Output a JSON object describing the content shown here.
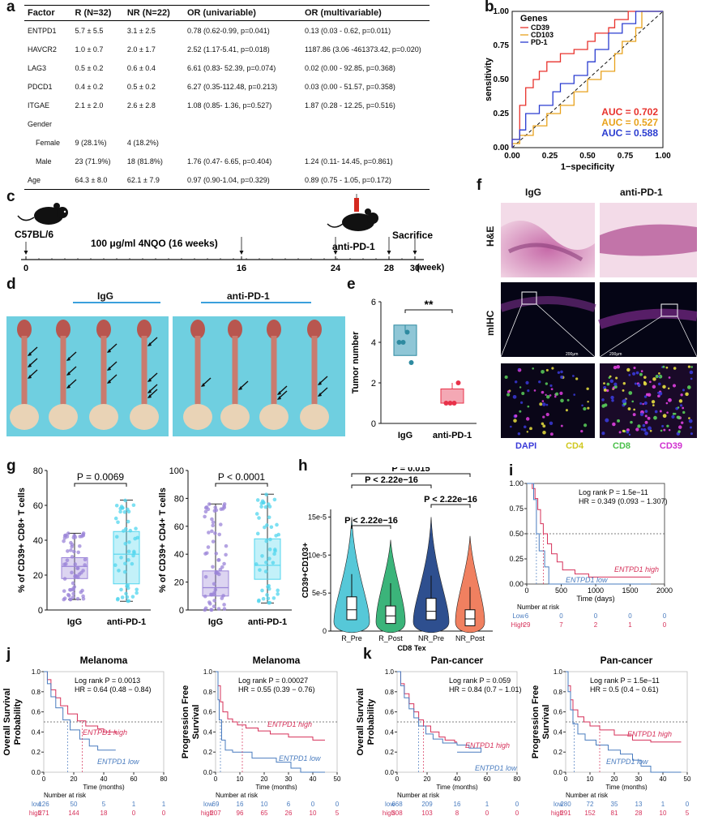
{
  "panels": {
    "a": "a",
    "b": "b",
    "c": "c",
    "d": "d",
    "e": "e",
    "f": "f",
    "g": "g",
    "h": "h",
    "i": "i",
    "j": "j",
    "k": "k"
  },
  "table_a": {
    "headers": [
      "Factor",
      "R (N=32)",
      "NR (N=22)",
      "OR (univariable)",
      "OR (multivariable)"
    ],
    "rows": [
      [
        "ENTPD1",
        "5.7 ± 5.5",
        "3.1 ± 2.5",
        "0.78 (0.62-0.99, p=0.041)",
        "0.13 (0.03 - 0.62, p=0.011)"
      ],
      [
        "HAVCR2",
        "1.0 ± 0.7",
        "2.0 ± 1.7",
        "2.52 (1.17-5.41, p=0.018)",
        "1187.86 (3.06 -461373.42, p=0.020)"
      ],
      [
        "LAG3",
        "0.5 ± 0.2",
        "0.6 ± 0.4",
        "6.61 (0.83- 52.39, p=0.074)",
        "0.02 (0.00 - 92.85, p=0.368)"
      ],
      [
        "PDCD1",
        "0.4 ± 0.2",
        "0.5 ± 0.2",
        "6.27 (0.35-112.48, p=0.213)",
        "0.03 (0.00 - 51.57, p=0.358)"
      ],
      [
        "ITGAE",
        "2.1 ± 2.0",
        "2.6 ± 2.8",
        "1.08 (0.85- 1.36, p=0.527)",
        "1.87 (0.28 - 12.25, p=0.516)"
      ],
      [
        "Gender",
        "",
        "",
        "",
        ""
      ],
      [
        "Female",
        "9 (28.1%)",
        "4 (18.2%)",
        "",
        ""
      ],
      [
        "Male",
        "23 (71.9%)",
        "18 (81.8%)",
        "1.76 (0.47- 6.65, p=0.404)",
        "1.24 (0.11- 14.45, p=0.861)"
      ],
      [
        "Age",
        "64.3 ± 8.0",
        "62.1 ± 7.9",
        "0.97 (0.90-1.04, p=0.329)",
        "0.89 (0.75 - 1.05, p=0.172)"
      ]
    ]
  },
  "chart_data": [
    {
      "id": "b",
      "type": "line",
      "xlabel": "1−specificity",
      "ylabel": "sensitivity",
      "xlim": [
        0,
        1
      ],
      "ylim": [
        0,
        1
      ],
      "xticks": [
        "0.00",
        "0.25",
        "0.50",
        "0.75",
        "1.00"
      ],
      "yticks": [
        "0.00",
        "0.25",
        "0.50",
        "0.75",
        "1.00"
      ],
      "legend_title": "Genes",
      "legend_position": "top-left",
      "series": [
        {
          "name": "CD39",
          "color": "#e8322c",
          "auc": "AUC = 0.702",
          "x": [
            0,
            0,
            0.05,
            0.05,
            0.09,
            0.09,
            0.14,
            0.14,
            0.18,
            0.18,
            0.23,
            0.23,
            0.32,
            0.32,
            0.41,
            0.41,
            0.5,
            0.5,
            0.55,
            0.55,
            0.64,
            0.64,
            0.68,
            0.68,
            0.77,
            0.77,
            0.82,
            0.82,
            1
          ],
          "y": [
            0,
            0.06,
            0.06,
            0.31,
            0.31,
            0.44,
            0.44,
            0.5,
            0.5,
            0.56,
            0.56,
            0.63,
            0.63,
            0.69,
            0.69,
            0.72,
            0.72,
            0.78,
            0.78,
            0.84,
            0.84,
            0.88,
            0.88,
            0.94,
            0.94,
            1,
            1,
            1,
            1
          ]
        },
        {
          "name": "CD103",
          "color": "#e8a21c",
          "auc": "AUC = 0.527",
          "x": [
            0,
            0,
            0.05,
            0.05,
            0.14,
            0.14,
            0.23,
            0.23,
            0.32,
            0.32,
            0.41,
            0.41,
            0.5,
            0.5,
            0.59,
            0.59,
            0.68,
            0.68,
            0.73,
            0.73,
            0.82,
            0.82,
            0.86,
            0.86,
            1
          ],
          "y": [
            0,
            0.03,
            0.03,
            0.09,
            0.09,
            0.16,
            0.16,
            0.25,
            0.25,
            0.31,
            0.31,
            0.41,
            0.41,
            0.5,
            0.5,
            0.56,
            0.56,
            0.69,
            0.69,
            0.78,
            0.78,
            0.88,
            0.88,
            1,
            1
          ]
        },
        {
          "name": "PD-1",
          "color": "#2a3cd0",
          "auc": "AUC = 0.588",
          "x": [
            0,
            0,
            0.05,
            0.05,
            0.09,
            0.09,
            0.18,
            0.18,
            0.27,
            0.27,
            0.32,
            0.32,
            0.41,
            0.41,
            0.5,
            0.5,
            0.55,
            0.55,
            0.64,
            0.64,
            0.73,
            0.73,
            0.82,
            0.82,
            1
          ],
          "y": [
            0,
            0.06,
            0.06,
            0.13,
            0.13,
            0.25,
            0.25,
            0.31,
            0.31,
            0.41,
            0.41,
            0.47,
            0.47,
            0.53,
            0.53,
            0.63,
            0.63,
            0.72,
            0.72,
            0.84,
            0.84,
            0.91,
            0.91,
            1,
            1
          ]
        }
      ]
    },
    {
      "id": "e",
      "type": "scatter",
      "ylabel": "Tumor number",
      "categories": [
        "IgG",
        "anti-PD-1"
      ],
      "ylim": [
        0,
        6
      ],
      "yticks": [
        0,
        2,
        4,
        6
      ],
      "significance": "**",
      "series": [
        {
          "values": [
            4,
            4,
            4.5,
            3
          ]
        },
        {
          "values": [
            1,
            1,
            1,
            2
          ]
        }
      ]
    },
    {
      "id": "g1",
      "type": "scatter",
      "ylabel": "% of CD39+ CD8+ T cells",
      "categories": [
        "IgG",
        "anti-PD-1"
      ],
      "ylim": [
        0,
        80
      ],
      "yticks": [
        0,
        20,
        40,
        60,
        80
      ],
      "pvalue": "P = 0.0069",
      "boxes": [
        {
          "q1": 18,
          "median": 25,
          "q3": 30,
          "min": 6,
          "max": 44
        },
        {
          "q1": 15,
          "median": 32,
          "q3": 45,
          "min": 5,
          "max": 63
        }
      ]
    },
    {
      "id": "g2",
      "type": "scatter",
      "ylabel": "% of CD39+ CD4+ T cells",
      "categories": [
        "IgG",
        "anti-PD-1"
      ],
      "ylim": [
        0,
        100
      ],
      "yticks": [
        0,
        20,
        40,
        60,
        80,
        100
      ],
      "pvalue": "P < 0.0001",
      "boxes": [
        {
          "q1": 10,
          "median": 16,
          "q3": 28,
          "min": 0,
          "max": 76
        },
        {
          "q1": 22,
          "median": 32,
          "q3": 51,
          "min": 5,
          "max": 83
        }
      ]
    },
    {
      "id": "h",
      "type": "area",
      "xlabel": "CD8 Tex",
      "ylabel": "CD39+CD103+",
      "categories": [
        "R_Pre",
        "R_Post",
        "NR_Pre",
        "NR_Post"
      ],
      "yticks": [
        "0",
        "5e-5",
        "10e-5",
        "15e-5"
      ],
      "comparisons": [
        "P = 0.015",
        "P < 2.22e−16",
        "P < 2.22e−16",
        "P < 2.22e−16"
      ]
    },
    {
      "id": "i",
      "type": "line",
      "xlabel": "Time (days)",
      "xlim": [
        0,
        2000
      ],
      "ylim": [
        0,
        1
      ],
      "xticks": [
        "0",
        "500",
        "1000",
        "1500",
        "2000"
      ],
      "yticks": [
        "0.00",
        "0.25",
        "0.50",
        "0.75",
        "1.00"
      ],
      "stats": [
        "Log rank P = 1.5e−11",
        "HR = 0.349 (0.093 − 1.307)"
      ],
      "series": [
        {
          "name": "ENTPD1 high",
          "color": "#d6315a"
        },
        {
          "name": "ENTPD1 low",
          "color": "#4a7cbf"
        }
      ],
      "risk_title": "Number at risk",
      "risk": [
        {
          "label": "Low",
          "values": [
            "6",
            "0",
            "0",
            "0",
            "0"
          ]
        },
        {
          "label": "High",
          "values": [
            "29",
            "7",
            "2",
            "1",
            "0"
          ]
        }
      ]
    },
    {
      "id": "j1",
      "type": "line",
      "title": "Melanoma",
      "ylabel": "Overall Survival Probability",
      "xlabel": "Time (months)",
      "xticks": [
        "0",
        "20",
        "40",
        "60",
        "80"
      ],
      "yticks": [
        "0.0",
        "0.2",
        "0.4",
        "0.6",
        "0.8",
        "1.0"
      ],
      "stats": [
        "Log rank P = 0.0013",
        "HR = 0.64 (0.48 − 0.84)"
      ],
      "series": [
        {
          "name": "ENTPD1 high",
          "color": "#d6315a"
        },
        {
          "name": "ENTPD1 low",
          "color": "#4a7cbf"
        }
      ],
      "risk_title": "Number at risk",
      "risk": [
        {
          "label": "low",
          "values": [
            "126",
            "50",
            "5",
            "1",
            "1"
          ]
        },
        {
          "label": "high",
          "values": [
            "271",
            "144",
            "18",
            "0",
            "0"
          ]
        }
      ]
    },
    {
      "id": "j2",
      "type": "line",
      "title": "Melanoma",
      "ylabel": "Progression Free Survival",
      "xlabel": "Time (months)",
      "xticks": [
        "0",
        "10",
        "20",
        "30",
        "40",
        "50"
      ],
      "yticks": [
        "0.0",
        "0.2",
        "0.4",
        "0.6",
        "0.8",
        "1.0"
      ],
      "stats": [
        "Log rank P = 0.00027",
        "HR = 0.55 (0.39 − 0.76)"
      ],
      "series": [
        {
          "name": "ENTPD1 high",
          "color": "#d6315a"
        },
        {
          "name": "ENTPD1 low",
          "color": "#4a7cbf"
        }
      ],
      "risk_title": "Number at risk",
      "risk": [
        {
          "label": "low",
          "values": [
            "69",
            "16",
            "10",
            "6",
            "0",
            "0"
          ]
        },
        {
          "label": "high",
          "values": [
            "207",
            "96",
            "65",
            "26",
            "10",
            "5"
          ]
        }
      ]
    },
    {
      "id": "k1",
      "type": "line",
      "title": "Pan-cancer",
      "ylabel": "Overall Survival Probability",
      "xlabel": "Time (months)",
      "xticks": [
        "0",
        "20",
        "40",
        "60",
        "80"
      ],
      "yticks": [
        "0.0",
        "0.2",
        "0.4",
        "0.6",
        "0.8",
        "1.0"
      ],
      "stats": [
        "Log rank P = 0.059",
        "HR = 0.84 (0.7 − 1.01)"
      ],
      "series": [
        {
          "name": "ENTPD1 high",
          "color": "#d6315a"
        },
        {
          "name": "ENTPD1 low",
          "color": "#4a7cbf"
        }
      ],
      "risk_title": "Number at risk",
      "risk": [
        {
          "label": "low",
          "values": [
            "668",
            "209",
            "16",
            "1",
            "0"
          ]
        },
        {
          "label": "high",
          "values": [
            "308",
            "103",
            "8",
            "0",
            "0"
          ]
        }
      ]
    },
    {
      "id": "k2",
      "type": "line",
      "title": "Pan-cancer",
      "ylabel": "Progression Free Survival",
      "xlabel": "Time (months)",
      "xticks": [
        "0",
        "10",
        "20",
        "30",
        "40",
        "50"
      ],
      "yticks": [
        "0.0",
        "0.2",
        "0.4",
        "0.6",
        "0.8",
        "1.0"
      ],
      "stats": [
        "Log rank P = 1.5e−11",
        "HR = 0.5 (0.4 − 0.61)"
      ],
      "series": [
        {
          "name": "ENTPD1 high",
          "color": "#d6315a"
        },
        {
          "name": "ENTPD1 low",
          "color": "#4a7cbf"
        }
      ],
      "risk_title": "Number at risk",
      "risk": [
        {
          "label": "low",
          "values": [
            "280",
            "72",
            "35",
            "13",
            "1",
            "0"
          ]
        },
        {
          "label": "high",
          "values": [
            "291",
            "152",
            "81",
            "28",
            "10",
            "5"
          ]
        }
      ]
    }
  ],
  "panel_c": {
    "strain": "C57BL/6",
    "treatment": "100 μg/ml 4NQO (16 weeks)",
    "drug": "anti-PD-1",
    "endpoint": "Sacrifice",
    "timepoints": [
      "0",
      "16",
      "24",
      "28",
      "30"
    ],
    "unit": "(week)"
  },
  "panel_d": {
    "left": "IgG",
    "right": "anti-PD-1"
  },
  "panel_f": {
    "cols": [
      "IgG",
      "anti-PD-1"
    ],
    "rows": [
      "H&E",
      "mIHC"
    ],
    "scalebar": "200μm",
    "channels": [
      {
        "name": "DAPI",
        "color": "#3a3ad8"
      },
      {
        "name": "CD4",
        "color": "#e8e040"
      },
      {
        "name": "CD8",
        "color": "#5ad05a"
      },
      {
        "name": "CD39",
        "color": "#e040e0"
      }
    ]
  }
}
